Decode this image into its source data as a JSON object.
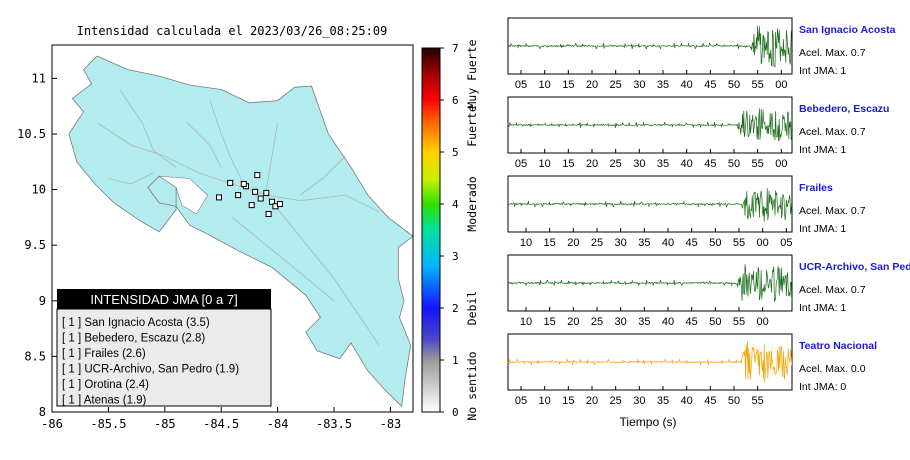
{
  "map": {
    "title": "Intensidad calculada el 2023/03/26_08:25:09",
    "x_ticks": [
      "-86",
      "-85.5",
      "-85",
      "-84.5",
      "-84",
      "-83.5",
      "-83"
    ],
    "y_ticks": [
      "11",
      "10.5",
      "10",
      "9.5",
      "9",
      "8.5",
      "8"
    ],
    "xlim": [
      -86,
      -82.8
    ],
    "ylim": [
      8,
      11.3
    ],
    "land_color": "#b2ecee",
    "legend": {
      "header": "INTENSIDAD JMA [0 a 7]",
      "entries": [
        {
          "label": "[ 1 ]  San Ignacio Acosta (3.5)"
        },
        {
          "label": "[ 1 ]  Bebedero, Escazu (2.8)"
        },
        {
          "label": "[ 1 ]  Frailes (2.6)"
        },
        {
          "label": "[ 1 ]  UCR-Archivo, San Pedro (1.9)"
        },
        {
          "label": "[ 1 ]  Orotina (2.4)"
        },
        {
          "label": "[ 1 ]  Atenas (1.9)"
        }
      ]
    },
    "stations": [
      {
        "lon": -84.52,
        "lat": 9.93
      },
      {
        "lon": -84.42,
        "lat": 10.06
      },
      {
        "lon": -84.35,
        "lat": 9.95
      },
      {
        "lon": -84.28,
        "lat": 10.03
      },
      {
        "lon": -84.18,
        "lat": 10.13
      },
      {
        "lon": -84.2,
        "lat": 9.98
      },
      {
        "lon": -84.23,
        "lat": 9.86
      },
      {
        "lon": -84.15,
        "lat": 9.92
      },
      {
        "lon": -84.1,
        "lat": 9.97
      },
      {
        "lon": -84.05,
        "lat": 9.89
      },
      {
        "lon": -84.02,
        "lat": 9.85
      },
      {
        "lon": -83.98,
        "lat": 9.87
      },
      {
        "lon": -84.08,
        "lat": 9.78
      },
      {
        "lon": -84.3,
        "lat": 10.05
      }
    ]
  },
  "colorbar": {
    "ticks": [
      "0",
      "1",
      "2",
      "3",
      "4",
      "5",
      "6",
      "7"
    ],
    "labels": [
      {
        "text": "No sentido",
        "from": 0,
        "to": 1
      },
      {
        "text": "Debil",
        "from": 1,
        "to": 3
      },
      {
        "text": "Moderado",
        "from": 3,
        "to": 5
      },
      {
        "text": "Fuerte",
        "from": 5,
        "to": 6
      },
      {
        "text": "Muy Fuerte",
        "from": 6,
        "to": 7
      }
    ]
  },
  "chart_data": [
    {
      "type": "scatter",
      "title": "Intensidad calculada el 2023/03/26_08:25:09",
      "xlim": [
        -86,
        -82.8
      ],
      "ylim": [
        8,
        11.3
      ],
      "x_ticks": [
        -86,
        -85.5,
        -85,
        -84.5,
        -84,
        -83.5,
        -83
      ],
      "y_ticks": [
        8,
        8.5,
        9,
        9.5,
        10,
        10.5,
        11
      ],
      "colorbar": {
        "range": [
          0,
          7
        ]
      },
      "legend_position": "bottom-left"
    },
    {
      "type": "line",
      "panels": [
        {
          "station": "San Ignacio Acosta",
          "acel": "Acel. Max. 0.7",
          "jma": "Int JMA: 1",
          "color": "#1a6b1a",
          "ticks": [
            "05",
            "10",
            "15",
            "20",
            "25",
            "30",
            "35",
            "40",
            "45",
            "50",
            "55",
            "00"
          ],
          "first_tick_s": 5,
          "onset_s": 51,
          "amp": 0.85
        },
        {
          "station": "Bebedero, Escazu",
          "acel": "Acel. Max. 0.7",
          "jma": "Int JMA: 1",
          "color": "#1a6b1a",
          "ticks": [
            "05",
            "10",
            "15",
            "20",
            "25",
            "30",
            "35",
            "40",
            "45",
            "50",
            "55",
            "00"
          ],
          "first_tick_s": 5,
          "onset_s": 48,
          "amp": 0.65
        },
        {
          "station": "Frailes",
          "acel": "Acel. Max. 0.7",
          "jma": "Int JMA: 1",
          "color": "#1a6b1a",
          "ticks": [
            "10",
            "15",
            "20",
            "25",
            "30",
            "35",
            "40",
            "45",
            "50",
            "55",
            "00",
            "05"
          ],
          "first_tick_s": 10,
          "onset_s": 49,
          "amp": 0.7
        },
        {
          "station": "UCR-Archivo, San Pedro",
          "acel": "Acel. Max. 0.7",
          "jma": "Int JMA: 1",
          "color": "#1a6b1a",
          "ticks": [
            "10",
            "15",
            "20",
            "25",
            "30",
            "35",
            "40",
            "45",
            "50",
            "55",
            "00"
          ],
          "first_tick_s": 10,
          "onset_s": 48,
          "amp": 0.75
        },
        {
          "station": "Teatro Nacional",
          "acel": "Acel. Max. 0.0",
          "jma": "Int JMA: 0",
          "color": "#f5a300",
          "ticks": [
            "05",
            "10",
            "15",
            "20",
            "25",
            "30",
            "35",
            "40",
            "45",
            "50",
            "55"
          ],
          "first_tick_s": 5,
          "onset_s": 49,
          "amp": 0.8
        }
      ],
      "xlabel": "Tiempo (s)"
    }
  ]
}
